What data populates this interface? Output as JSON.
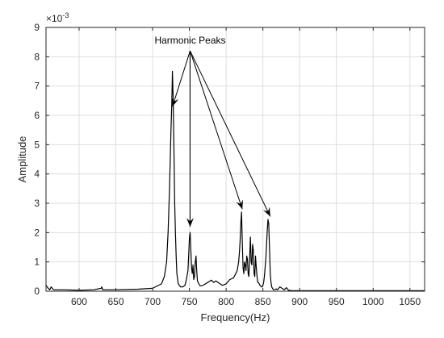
{
  "chart_data": {
    "type": "line",
    "title": "",
    "xlabel": "Frequency(Hz)",
    "ylabel": "Amplitude",
    "y_exponent_label": "×10",
    "y_exponent_power": "-3",
    "xlim": [
      555,
      1070
    ],
    "ylim": [
      0,
      9
    ],
    "xticks": [
      600,
      650,
      700,
      750,
      800,
      850,
      900,
      950,
      1000,
      1050
    ],
    "yticks": [
      0,
      1,
      2,
      3,
      4,
      5,
      6,
      7,
      8,
      9
    ],
    "grid": true,
    "line_color": "#000000",
    "series": [
      {
        "x": [
          555,
          558,
          560,
          562,
          565,
          580,
          600,
          620,
          630,
          631,
          632,
          650,
          680,
          700,
          712,
          716,
          719,
          721,
          723,
          725,
          726,
          727,
          728,
          729,
          730,
          731,
          732,
          733,
          735,
          738,
          741,
          744,
          746,
          748,
          749,
          750,
          751,
          752,
          753,
          754,
          755,
          756,
          757,
          758,
          759,
          760,
          761,
          762,
          763,
          764,
          766,
          770,
          775,
          780,
          783,
          786,
          790,
          795,
          800,
          805,
          810,
          813,
          815,
          817,
          818,
          819,
          820,
          821,
          822,
          823,
          824,
          825,
          826,
          827,
          828,
          829,
          830,
          831,
          832,
          833,
          834,
          835,
          836,
          837,
          838,
          839,
          840,
          841,
          842,
          843,
          844,
          845,
          846,
          847,
          848,
          849,
          850,
          851,
          852,
          853,
          854,
          855,
          856,
          857,
          858,
          859,
          860,
          861,
          862,
          863,
          864,
          866,
          868,
          870,
          873,
          876,
          879,
          882,
          885,
          890,
          900,
          950,
          1000,
          1050,
          1070
        ],
        "y": [
          0.2,
          0.1,
          0.05,
          0.15,
          0.05,
          0.05,
          0.03,
          0.05,
          0.1,
          0.15,
          0.05,
          0.05,
          0.07,
          0.1,
          0.25,
          0.5,
          1.0,
          2.0,
          3.5,
          5.5,
          6.3,
          7.5,
          6.6,
          4.8,
          3.0,
          2.0,
          1.2,
          0.6,
          0.25,
          0.15,
          0.15,
          0.2,
          0.4,
          0.7,
          1.2,
          1.8,
          2.0,
          1.4,
          0.8,
          0.6,
          0.9,
          0.4,
          0.5,
          1.0,
          1.2,
          0.7,
          0.35,
          0.3,
          0.25,
          0.2,
          0.18,
          0.22,
          0.3,
          0.38,
          0.3,
          0.35,
          0.28,
          0.2,
          0.25,
          0.4,
          0.45,
          0.6,
          0.7,
          1.0,
          1.3,
          1.7,
          2.3,
          2.7,
          1.6,
          0.8,
          0.6,
          1.0,
          0.9,
          0.7,
          1.2,
          1.1,
          0.6,
          0.5,
          1.2,
          1.85,
          1.0,
          0.9,
          1.6,
          1.4,
          0.6,
          0.5,
          1.2,
          0.8,
          0.5,
          0.3,
          0.3,
          0.25,
          0.2,
          0.18,
          0.15,
          0.15,
          0.2,
          0.3,
          0.5,
          0.8,
          1.1,
          1.6,
          2.1,
          2.45,
          2.3,
          1.5,
          0.6,
          0.3,
          0.15,
          0.1,
          0.06,
          0.05,
          0.08,
          0.05,
          0.15,
          0.1,
          0.05,
          0.12,
          0.03,
          0.02,
          0.02,
          0.02,
          0.02,
          0.02,
          0.02
        ]
      }
    ],
    "annotation": {
      "text": "Harmonic Peaks",
      "origin": {
        "x": 751,
        "y": 8.2
      },
      "arrow_targets": [
        {
          "x": 727,
          "y": 6.3
        },
        {
          "x": 751,
          "y": 2.2
        },
        {
          "x": 822,
          "y": 2.8
        },
        {
          "x": 860,
          "y": 2.55
        }
      ]
    }
  }
}
